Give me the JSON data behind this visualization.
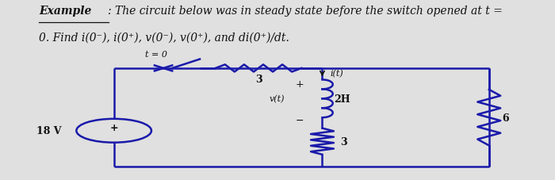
{
  "bg_color": "#e0e0e0",
  "circuit_color": "#1a1aaa",
  "label_color": "#111111",
  "font_size": 10,
  "circuit_lw": 1.8,
  "title_example": "Example",
  "title_rest1": ": The circuit below was in steady state before the switch opened at t =",
  "title_rest2": "0. Find i(0⁻), i(0⁺), v(0⁻), v(0⁺), and di(0⁺)/dt.",
  "switch_label": "t = 0",
  "label_3top": "3",
  "label_2H": "2H",
  "label_3bot": "3",
  "label_6": "6",
  "label_18V": "18 V",
  "label_it": "i(t)",
  "label_vt": "v(t)",
  "label_plus": "+",
  "label_minus": "−"
}
